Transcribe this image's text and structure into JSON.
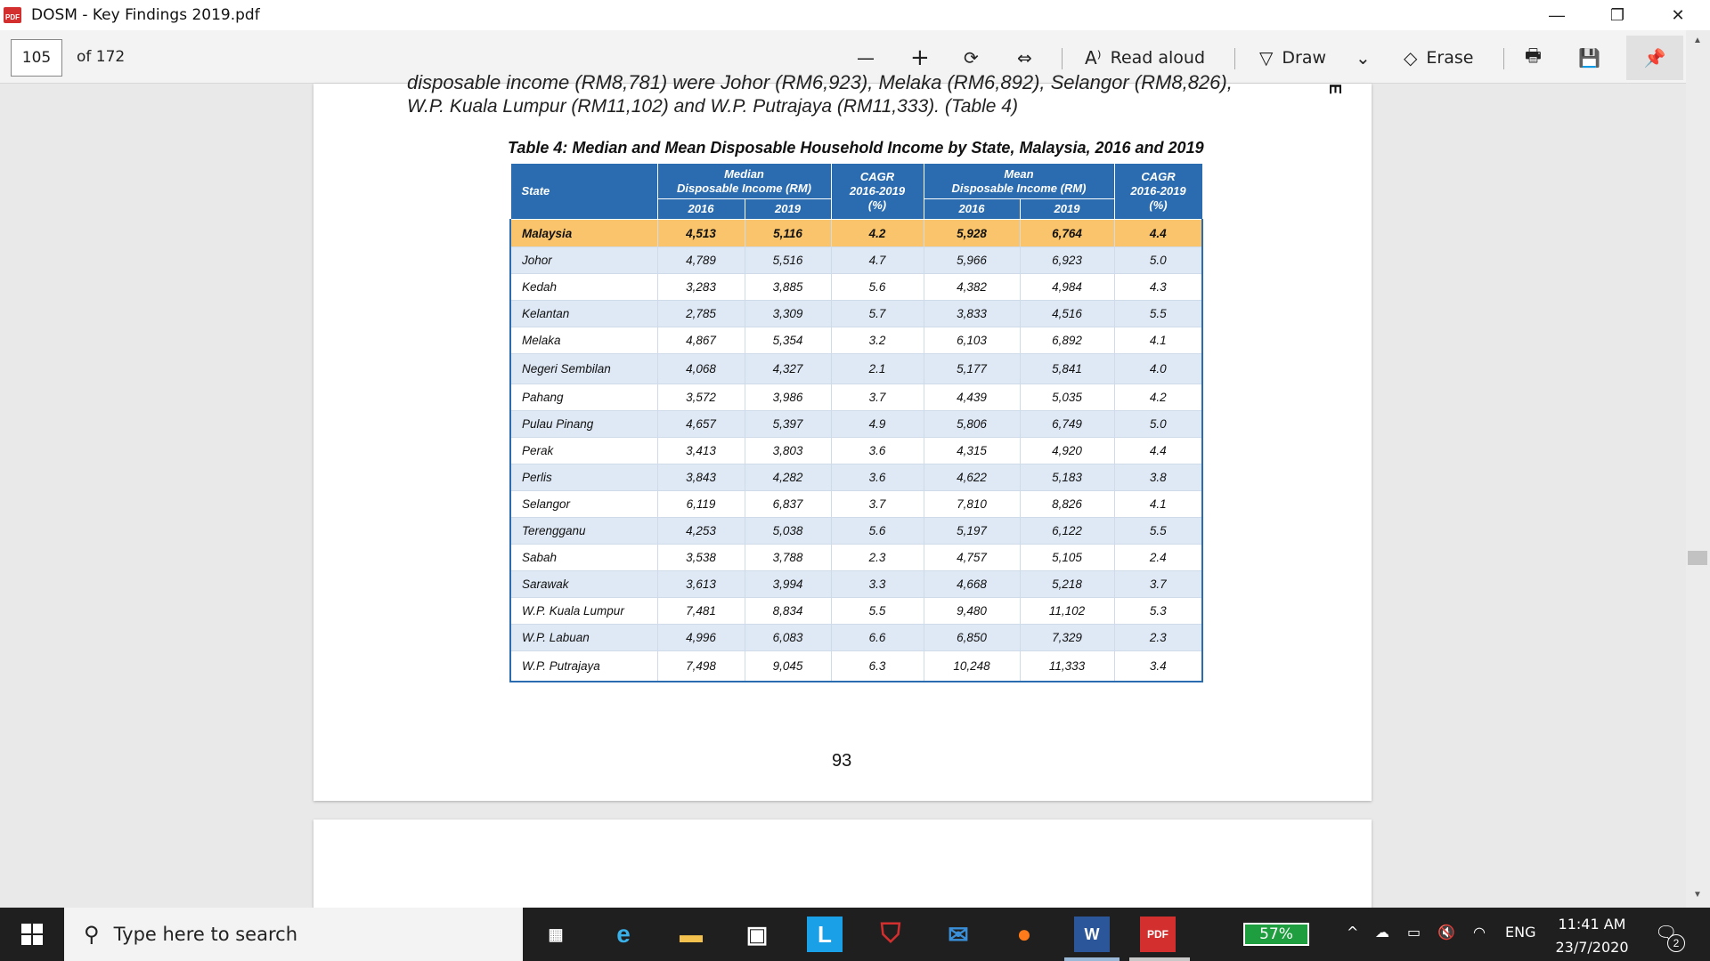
{
  "window": {
    "title": "DOSM - Key Findings 2019.pdf",
    "icon_label": "PDF",
    "minimize": "—",
    "restore": "❐",
    "close": "✕"
  },
  "toolbar": {
    "page_current": "105",
    "page_total": "of 172",
    "zoom_out": "—",
    "zoom_in": "+",
    "rotate": "⟳",
    "fit": "⇔",
    "read_aloud_label": "Read aloud",
    "draw_label": "Draw",
    "draw_dropdown": "⌄",
    "erase_label": "Erase",
    "print": "🖶",
    "save": "💾",
    "pin": "📌"
  },
  "document": {
    "cut_line": "disposable income (RM8,781) were Johor (RM6,923), Melaka (RM6,892), Selangor (RM8,826),",
    "para_line": "W.P. Kuala Lumpur (RM11,102) and W.P. Putrajaya (RM11,333). (Table 4)",
    "side_mark": "E",
    "table_caption": "Table 4: Median and Mean Disposable Household Income by State, Malaysia, 2016 and 2019",
    "headers": {
      "state": "State",
      "median": "Median\nDisposable Income (RM)",
      "cagr1": "CAGR\n2016-2019\n(%)",
      "mean": "Mean\nDisposable Income (RM)",
      "cagr2": "CAGR\n2016-2019\n(%)",
      "y2016a": "2016",
      "y2019a": "2019",
      "y2016b": "2016",
      "y2019b": "2019"
    },
    "rows": [
      [
        "Malaysia",
        "4,513",
        "5,116",
        "4.2",
        "5,928",
        "6,764",
        "4.4"
      ],
      [
        "Johor",
        "4,789",
        "5,516",
        "4.7",
        "5,966",
        "6,923",
        "5.0"
      ],
      [
        "Kedah",
        "3,283",
        "3,885",
        "5.6",
        "4,382",
        "4,984",
        "4.3"
      ],
      [
        "Kelantan",
        "2,785",
        "3,309",
        "5.7",
        "3,833",
        "4,516",
        "5.5"
      ],
      [
        "Melaka",
        "4,867",
        "5,354",
        "3.2",
        "6,103",
        "6,892",
        "4.1"
      ],
      [
        "Negeri Sembilan",
        "4,068",
        "4,327",
        "2.1",
        "5,177",
        "5,841",
        "4.0"
      ],
      [
        "Pahang",
        "3,572",
        "3,986",
        "3.7",
        "4,439",
        "5,035",
        "4.2"
      ],
      [
        "Pulau Pinang",
        "4,657",
        "5,397",
        "4.9",
        "5,806",
        "6,749",
        "5.0"
      ],
      [
        "Perak",
        "3,413",
        "3,803",
        "3.6",
        "4,315",
        "4,920",
        "4.4"
      ],
      [
        "Perlis",
        "3,843",
        "4,282",
        "3.6",
        "4,622",
        "5,183",
        "3.8"
      ],
      [
        "Selangor",
        "6,119",
        "6,837",
        "3.7",
        "7,810",
        "8,826",
        "4.1"
      ],
      [
        "Terengganu",
        "4,253",
        "5,038",
        "5.6",
        "5,197",
        "6,122",
        "5.5"
      ],
      [
        "Sabah",
        "3,538",
        "3,788",
        "2.3",
        "4,757",
        "5,105",
        "2.4"
      ],
      [
        "Sarawak",
        "3,613",
        "3,994",
        "3.3",
        "4,668",
        "5,218",
        "3.7"
      ],
      [
        "W.P. Kuala Lumpur",
        "7,481",
        "8,834",
        "5.5",
        "9,480",
        "11,102",
        "5.3"
      ],
      [
        "W.P. Labuan",
        "4,996",
        "6,083",
        "6.6",
        "6,850",
        "7,329",
        "2.3"
      ],
      [
        "W.P. Putrajaya",
        "7,498",
        "9,045",
        "6.3",
        "10,248",
        "11,333",
        "3.4"
      ]
    ],
    "page_number": "93"
  },
  "taskbar": {
    "search_placeholder": "Type here to search",
    "battery": "57%",
    "language": "ENG",
    "time": "11:41 AM",
    "date": "23/7/2020",
    "notifications": "2",
    "tray_chevron": "^",
    "volume": "🔇"
  },
  "colors": {
    "header_blue": "#2b6cb0",
    "highlight_orange": "#f9c46b",
    "stripe_blue": "#dfe9f5"
  }
}
